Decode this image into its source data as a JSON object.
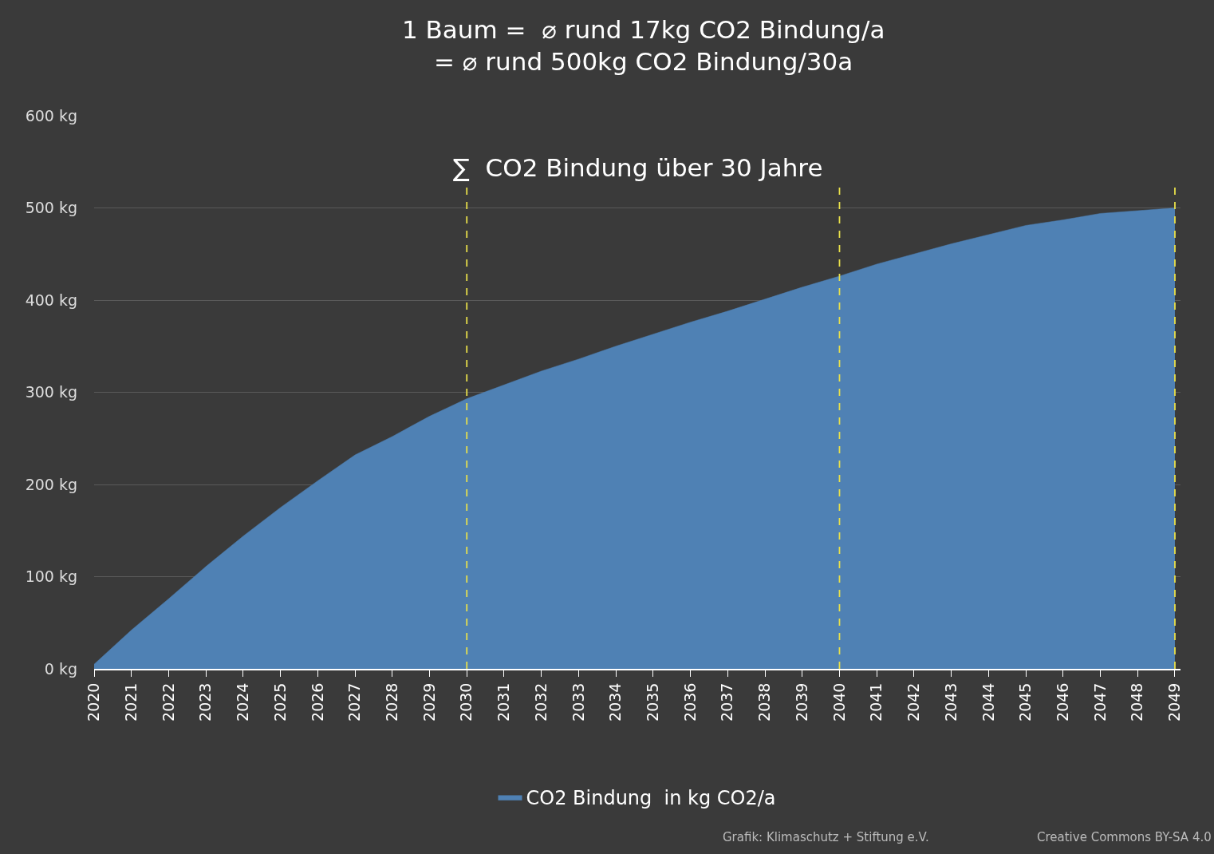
{
  "chart_data": {
    "type": "area",
    "title": "1 Baum =  ⌀ rund 17kg CO2 Bindung/a\n= ⌀ rund 500kg CO2 Bindung/30a",
    "subtitle": "∑  CO2 Bindung über 30 Jahre",
    "categories": [
      "2020",
      "2021",
      "2022",
      "2023",
      "2024",
      "2025",
      "2026",
      "2027",
      "2028",
      "2029",
      "2030",
      "2031",
      "2032",
      "2033",
      "2034",
      "2035",
      "2036",
      "2037",
      "2038",
      "2039",
      "2040",
      "2041",
      "2042",
      "2043",
      "2044",
      "2045",
      "2046",
      "2047",
      "2048",
      "2049"
    ],
    "series": [
      {
        "name": "CO2 Bindung  in kg CO2/a",
        "color": "#4f81b4",
        "values": [
          5,
          42,
          76,
          111,
          144,
          175,
          204,
          232,
          252,
          274,
          293,
          308,
          323,
          336,
          350,
          363,
          376,
          388,
          401,
          414,
          426,
          439,
          450,
          461,
          471,
          481,
          487,
          494,
          497,
          500
        ]
      }
    ],
    "ylim": [
      0,
      600
    ],
    "yticks": [
      {
        "value": 0,
        "label": "0 kg"
      },
      {
        "value": 100,
        "label": "100 kg"
      },
      {
        "value": 200,
        "label": "200 kg"
      },
      {
        "value": 300,
        "label": "300 kg"
      },
      {
        "value": 400,
        "label": "400 kg"
      },
      {
        "value": 500,
        "label": "500 kg"
      },
      {
        "value": 600,
        "label": "600 kg"
      }
    ],
    "grid": "y",
    "legend": "bottom",
    "marker": "none",
    "ref_lines": [
      {
        "axis": "x",
        "value": "2030",
        "color": "#e8e04a",
        "line_style": "dashed"
      },
      {
        "axis": "x",
        "value": "2040",
        "color": "#e8e04a",
        "line_style": "dashed"
      },
      {
        "axis": "x",
        "value": "2049",
        "color": "#e8e04a",
        "line_style": "dashed"
      }
    ],
    "annotations": [
      "Grafik: Klimaschutz + Stiftung e.V.",
      "Creative Commons BY-SA 4.0"
    ]
  }
}
